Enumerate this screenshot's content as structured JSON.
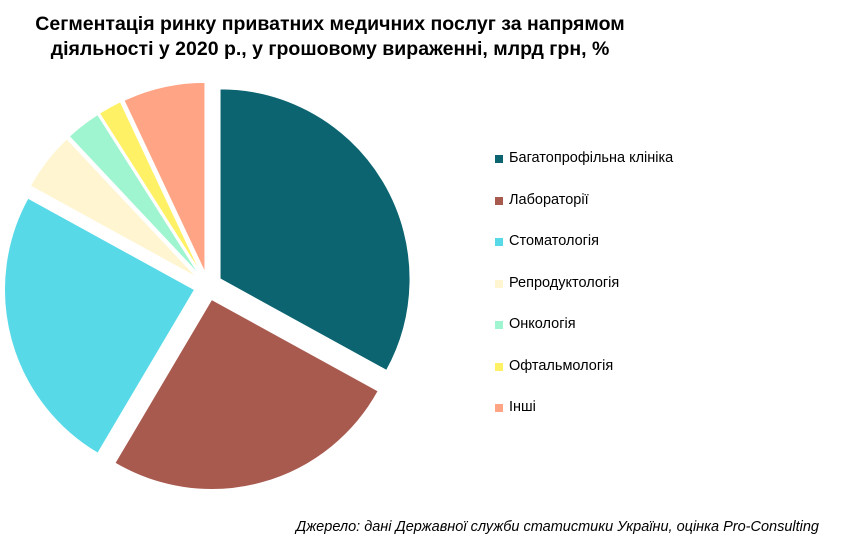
{
  "chart_data": {
    "type": "pie",
    "title_line1": "Сегментація ринку приватних медичних послуг за напрямом",
    "title_line2": "діяльності у 2020 р., у грошовому  вираженні, млрд грн, %",
    "legend_position": "right",
    "exploded": true,
    "slices": [
      {
        "name": "Багатопрофільна  клініка",
        "value": 33,
        "color": "#0b6470"
      },
      {
        "name": "Лабораторії",
        "value": 25.5,
        "color": "#a85a4f"
      },
      {
        "name": "Стоматологія",
        "value": 24.5,
        "color": "#58d9e8"
      },
      {
        "name": "Репродуктологія",
        "value": 5,
        "color": "#fff5d0"
      },
      {
        "name": "Онкологія",
        "value": 3,
        "color": "#9ff5cf"
      },
      {
        "name": "Офтальмологія",
        "value": 2,
        "color": "#fff166"
      },
      {
        "name": "Інші",
        "value": 7,
        "color": "#ffa585"
      }
    ]
  },
  "source": "Джерело: дані Державної  служби статистики України, оцінка Pro-Consulting"
}
